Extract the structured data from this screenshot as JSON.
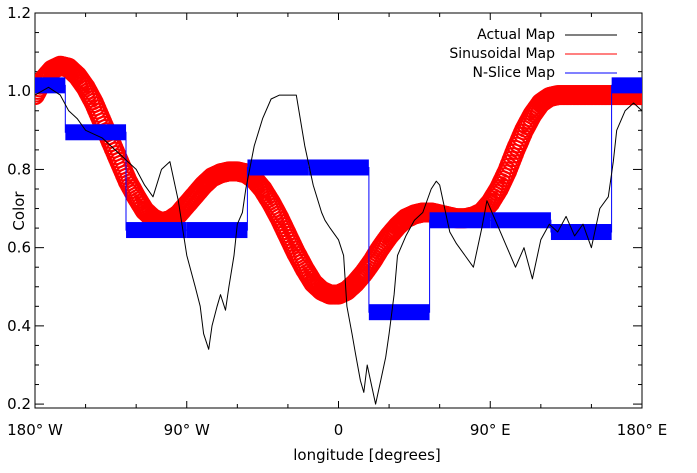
{
  "chart_data": {
    "type": "line",
    "xlabel": "longitude [degrees]",
    "ylabel": "Color",
    "xlim": [
      -180,
      180
    ],
    "ylim": [
      0.19,
      1.2
    ],
    "x_ticks": [
      -180,
      -90,
      0,
      90,
      180
    ],
    "x_tick_labels": [
      "180° W",
      "90° W",
      "0",
      "90° E",
      "180° E"
    ],
    "y_ticks": [
      0.2,
      0.4,
      0.6,
      0.8,
      1.0,
      1.2
    ],
    "y_tick_labels": [
      "0.2",
      "0.4",
      "0.6",
      "0.8",
      "1.0",
      "1.2"
    ],
    "grid": false,
    "legend_position": "top-right",
    "series": [
      {
        "name": "Actual Map",
        "color": "#000000",
        "style": "thin-line",
        "x": [
          -180,
          -172,
          -165,
          -160,
          -155,
          -150,
          -140,
          -130,
          -120,
          -115,
          -110,
          -105,
          -100,
          -95,
          -90,
          -85,
          -82,
          -80,
          -77,
          -75,
          -72,
          -70,
          -67,
          -65,
          -62,
          -60,
          -57,
          -55,
          -50,
          -45,
          -40,
          -35,
          -30,
          -25,
          -20,
          -15,
          -10,
          -8,
          -5,
          0,
          3,
          5,
          8,
          10,
          13,
          15,
          17,
          20,
          22,
          25,
          28,
          30,
          33,
          35,
          40,
          45,
          50,
          55,
          58,
          60,
          63,
          66,
          70,
          75,
          80,
          85,
          88,
          90,
          95,
          100,
          105,
          110,
          115,
          120,
          125,
          130,
          135,
          140,
          145,
          150,
          155,
          160,
          163,
          165,
          170,
          175,
          180
        ],
        "y": [
          0.99,
          1.01,
          0.99,
          0.95,
          0.93,
          0.9,
          0.88,
          0.84,
          0.8,
          0.76,
          0.73,
          0.8,
          0.82,
          0.72,
          0.58,
          0.5,
          0.45,
          0.38,
          0.34,
          0.4,
          0.45,
          0.48,
          0.44,
          0.5,
          0.58,
          0.66,
          0.69,
          0.75,
          0.86,
          0.93,
          0.98,
          0.99,
          0.99,
          0.99,
          0.86,
          0.76,
          0.69,
          0.67,
          0.65,
          0.62,
          0.58,
          0.45,
          0.38,
          0.33,
          0.26,
          0.23,
          0.3,
          0.24,
          0.2,
          0.26,
          0.32,
          0.38,
          0.48,
          0.58,
          0.63,
          0.67,
          0.69,
          0.75,
          0.77,
          0.76,
          0.7,
          0.64,
          0.61,
          0.58,
          0.55,
          0.65,
          0.72,
          0.7,
          0.65,
          0.6,
          0.55,
          0.6,
          0.52,
          0.62,
          0.66,
          0.64,
          0.68,
          0.63,
          0.66,
          0.6,
          0.7,
          0.73,
          0.82,
          0.9,
          0.95,
          0.97,
          0.95
        ]
      },
      {
        "name": "Sinusoidal Map",
        "color": "#ff0000",
        "style": "thick-circles",
        "x": [
          -180,
          -175,
          -170,
          -165,
          -160,
          -155,
          -150,
          -145,
          -140,
          -135,
          -130,
          -125,
          -120,
          -115,
          -110,
          -105,
          -100,
          -95,
          -90,
          -85,
          -80,
          -75,
          -70,
          -65,
          -60,
          -55,
          -50,
          -45,
          -40,
          -35,
          -30,
          -25,
          -20,
          -15,
          -10,
          -5,
          0,
          5,
          10,
          15,
          20,
          25,
          30,
          35,
          40,
          45,
          50,
          55,
          60,
          65,
          70,
          75,
          80,
          85,
          90,
          95,
          100,
          105,
          110,
          115,
          120,
          125,
          130,
          135,
          140,
          145,
          150,
          155,
          160,
          165,
          170,
          175,
          180
        ],
        "y": [
          0.99,
          1.03,
          1.055,
          1.065,
          1.06,
          1.04,
          1.01,
          0.97,
          0.92,
          0.87,
          0.82,
          0.77,
          0.73,
          0.695,
          0.675,
          0.665,
          0.67,
          0.685,
          0.71,
          0.735,
          0.76,
          0.78,
          0.79,
          0.795,
          0.795,
          0.79,
          0.775,
          0.75,
          0.715,
          0.675,
          0.63,
          0.585,
          0.545,
          0.51,
          0.49,
          0.48,
          0.48,
          0.49,
          0.51,
          0.535,
          0.565,
          0.6,
          0.63,
          0.655,
          0.675,
          0.685,
          0.69,
          0.69,
          0.685,
          0.68,
          0.675,
          0.675,
          0.68,
          0.69,
          0.715,
          0.75,
          0.795,
          0.85,
          0.9,
          0.94,
          0.97,
          0.985,
          0.99,
          0.99,
          0.99,
          0.99,
          0.99,
          0.99,
          0.99,
          0.99,
          0.99,
          0.99,
          0.99
        ]
      },
      {
        "name": "N-Slice Map",
        "color": "#0000ff",
        "style": "thick-steps",
        "x": [
          -180,
          -162,
          -162,
          -126,
          -126,
          -90,
          -90,
          -54,
          -54,
          -18,
          -18,
          18,
          18,
          54,
          54,
          90,
          90,
          126,
          126,
          162,
          162,
          180
        ],
        "y": [
          1.015,
          1.015,
          0.895,
          0.895,
          0.645,
          0.645,
          0.645,
          0.645,
          0.805,
          0.805,
          0.805,
          0.805,
          0.435,
          0.435,
          0.67,
          0.67,
          0.67,
          0.67,
          0.64,
          0.64,
          1.015,
          1.015
        ]
      }
    ]
  }
}
